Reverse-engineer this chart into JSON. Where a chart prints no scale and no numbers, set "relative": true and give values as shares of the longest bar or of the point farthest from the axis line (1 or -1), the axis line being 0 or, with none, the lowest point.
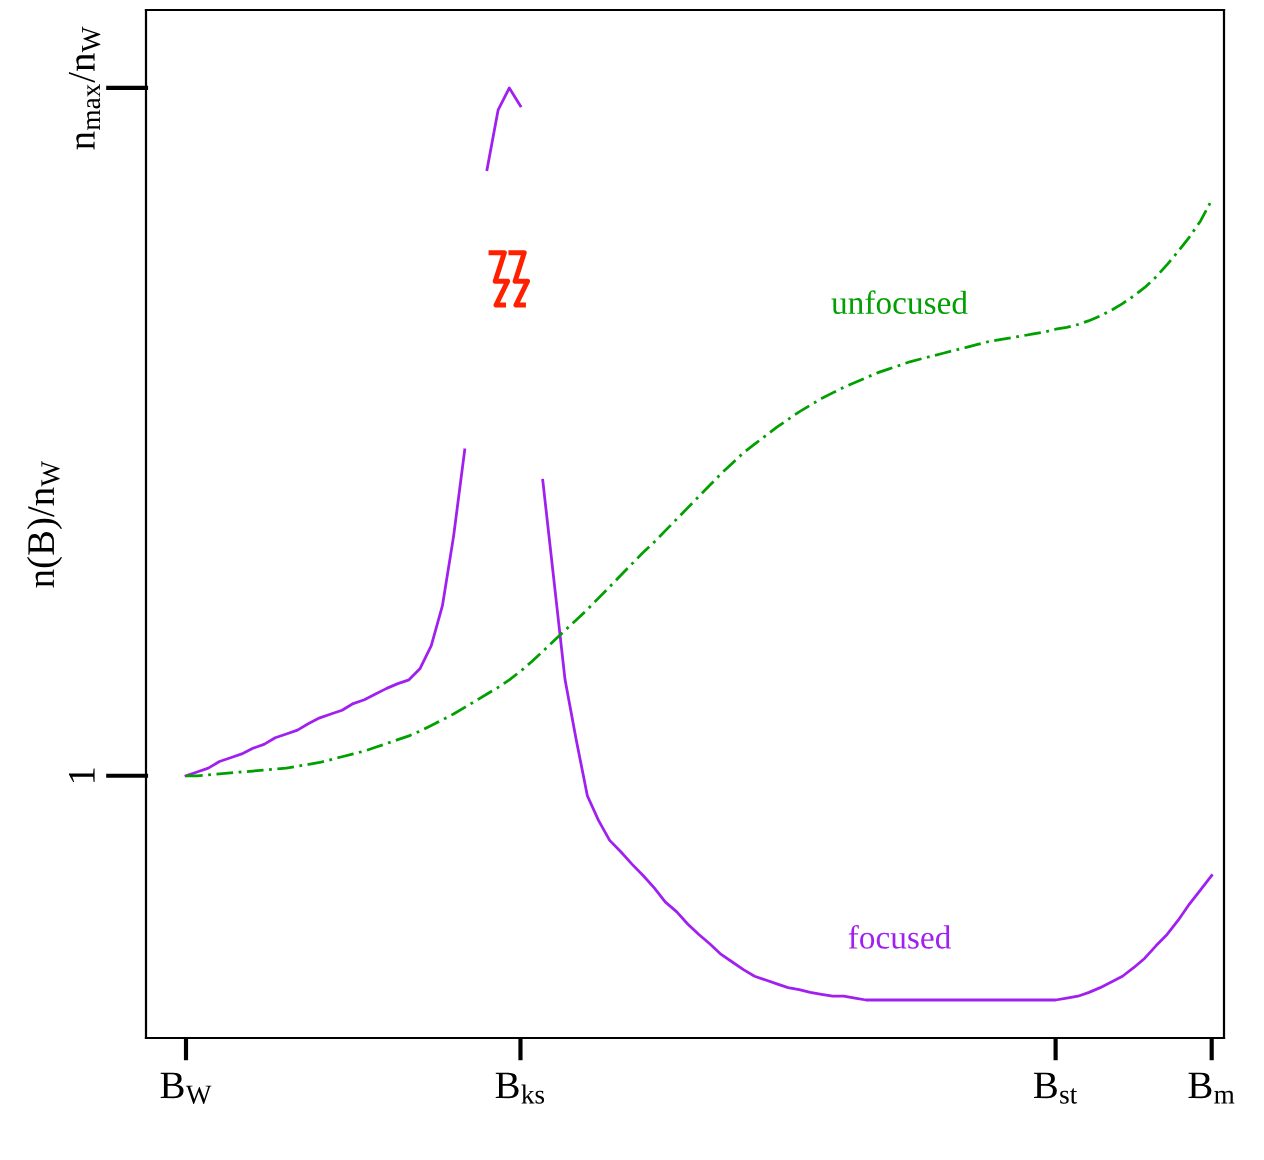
{
  "chart_data": {
    "type": "line",
    "relative": true,
    "ylabel": "n(B)/n$_{W}$",
    "categories": [
      "B$_{W}$",
      null,
      null,
      null,
      null,
      null,
      null,
      null,
      null,
      null,
      null,
      null,
      null,
      null,
      null,
      null,
      null,
      null,
      null,
      null,
      null,
      null,
      null,
      null,
      null,
      null,
      null,
      null,
      null,
      null,
      "B$_{ks}$",
      null,
      null,
      null,
      null,
      null,
      null,
      null,
      null,
      null,
      null,
      null,
      null,
      null,
      null,
      null,
      null,
      null,
      null,
      null,
      null,
      null,
      null,
      null,
      null,
      null,
      null,
      null,
      null,
      null,
      null,
      null,
      null,
      null,
      null,
      null,
      null,
      null,
      null,
      null,
      null,
      null,
      null,
      null,
      null,
      null,
      null,
      null,
      "B$_{st}$",
      null,
      null,
      null,
      null,
      null,
      null,
      null,
      null,
      null,
      null,
      null,
      null,
      null,
      "B$_{m}$"
    ],
    "annotations": [
      "1",
      "n$_{max}$/n$_{W}$"
    ],
    "series": [
      {
        "name": "focused",
        "color": "#a020f0",
        "line_style": "solid",
        "values": [
          0.276,
          0.28,
          0.284,
          0.291,
          0.295,
          0.299,
          0.305,
          0.309,
          0.316,
          0.32,
          0.324,
          0.331,
          0.337,
          0.341,
          0.345,
          0.352,
          0.356,
          0.362,
          0.368,
          0.373,
          0.377,
          0.389,
          0.413,
          0.455,
          0.528,
          0.619,
          null,
          0.914,
          0.977,
          1,
          0.981,
          null,
          0.587,
          0.482,
          0.377,
          0.314,
          0.255,
          0.229,
          0.208,
          0.196,
          0.183,
          0.171,
          0.158,
          0.143,
          0.133,
          0.12,
          0.109,
          0.099,
          0.088,
          0.08,
          0.072,
          0.065,
          0.061,
          0.057,
          0.053,
          0.051,
          0.048,
          0.046,
          0.044,
          0.044,
          0.042,
          0.04,
          0.04,
          0.04,
          0.04,
          0.04,
          0.04,
          0.04,
          0.04,
          0.04,
          0.04,
          0.04,
          0.04,
          0.04,
          0.04,
          0.04,
          0.04,
          0.04,
          0.04,
          0.042,
          0.044,
          0.048,
          0.053,
          0.059,
          0.065,
          0.074,
          0.084,
          0.097,
          0.109,
          0.124,
          0.141,
          0.156,
          0.171
        ]
      },
      {
        "name": "unfocused",
        "color": "#00a000",
        "line_style": "dashed",
        "values": [
          0.276,
          0.276,
          0.277,
          0.278,
          0.279,
          0.28,
          0.281,
          0.282,
          0.283,
          0.284,
          0.286,
          0.288,
          0.29,
          0.293,
          0.296,
          0.299,
          0.302,
          0.306,
          0.31,
          0.314,
          0.318,
          0.323,
          0.329,
          0.335,
          0.341,
          0.348,
          0.355,
          0.362,
          0.369,
          0.377,
          0.386,
          0.396,
          0.407,
          0.418,
          0.429,
          0.44,
          0.451,
          0.463,
          0.475,
          0.487,
          0.499,
          0.511,
          0.522,
          0.534,
          0.546,
          0.558,
          0.57,
          0.582,
          0.594,
          0.605,
          0.616,
          0.625,
          0.634,
          0.643,
          0.651,
          0.659,
          0.666,
          0.673,
          0.679,
          0.685,
          0.69,
          0.695,
          0.7,
          0.704,
          0.708,
          0.712,
          0.715,
          0.718,
          0.721,
          0.724,
          0.727,
          0.73,
          0.733,
          0.735,
          0.737,
          0.739,
          0.741,
          0.743,
          0.746,
          0.748,
          0.751,
          0.755,
          0.76,
          0.766,
          0.773,
          0.781,
          0.79,
          0.801,
          0.814,
          0.828,
          0.843,
          0.86,
          0.882
        ]
      }
    ]
  }
}
